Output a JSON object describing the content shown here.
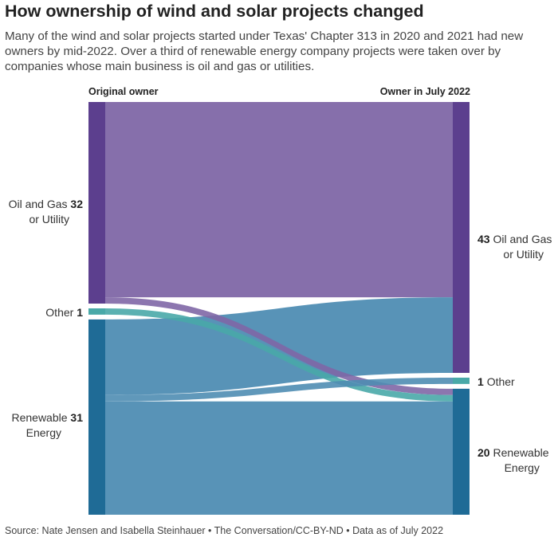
{
  "title": "How ownership of wind and solar projects changed",
  "subtitle": "Many of the wind and solar projects started under Texas' Chapter 313 in 2020 and 2021 had new owners by mid-2022. Over a third of renewable energy company projects were taken over by companies whose main business is oil and gas or utilities.",
  "left_header": "Original owner",
  "right_header": "Owner in July 2022",
  "source": "Source: Nate Jensen and Isabella Steinhauer • The Conversation/CC-BY-ND • Data as of July 2022",
  "colors": {
    "oil_gas": "#5c3f8e",
    "oil_gas_flow": "#7f67a6",
    "other": "#49a9a8",
    "renewable": "#1f6b96",
    "renewable_flow": "#4f8db3"
  },
  "chart_data": {
    "type": "sankey",
    "left_nodes": [
      {
        "id": "og_left",
        "name_line1": "Oil and Gas",
        "name_line2": "or Utility",
        "value": 32
      },
      {
        "id": "other_left",
        "name_line1": "Other",
        "name_line2": "",
        "value": 1
      },
      {
        "id": "ren_left",
        "name_line1": "Renewable",
        "name_line2": "Energy",
        "value": 31
      }
    ],
    "right_nodes": [
      {
        "id": "og_right",
        "name_line1": "Oil and Gas",
        "name_line2": "or Utility",
        "value": 43
      },
      {
        "id": "other_right",
        "name_line1": "Other",
        "name_line2": "",
        "value": 1
      },
      {
        "id": "ren_right",
        "name_line1": "Renewable",
        "name_line2": "Energy",
        "value": 20
      }
    ],
    "flows": [
      {
        "source": "og_left",
        "target": "og_right",
        "value": 31
      },
      {
        "source": "og_left",
        "target": "ren_right",
        "value": 1
      },
      {
        "source": "other_left",
        "target": "ren_right",
        "value": 1
      },
      {
        "source": "ren_left",
        "target": "og_right",
        "value": 12
      },
      {
        "source": "ren_left",
        "target": "other_right",
        "value": 1
      },
      {
        "source": "ren_left",
        "target": "ren_right",
        "value": 18
      }
    ]
  }
}
